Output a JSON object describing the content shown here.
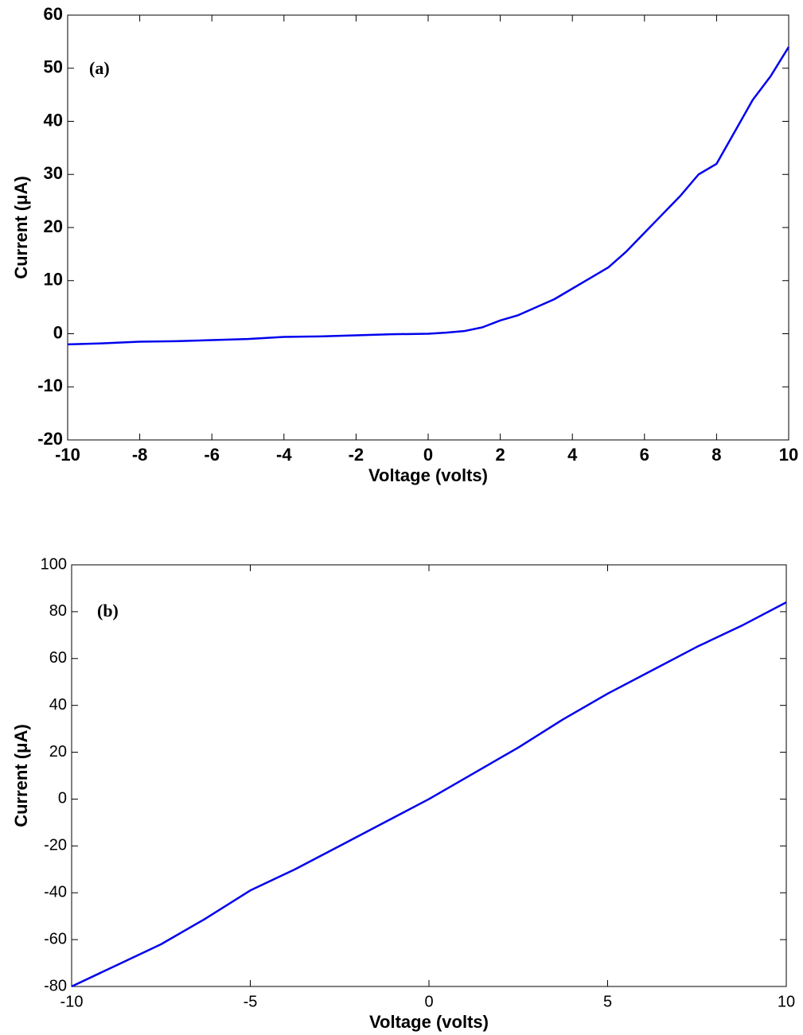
{
  "chart_data": [
    {
      "type": "line",
      "annotation": "(a)",
      "xlabel": "Voltage (volts)",
      "ylabel": "Current (μA)",
      "x": [
        -10,
        -9,
        -8,
        -7,
        -6,
        -5,
        -4,
        -3,
        -2,
        -1,
        0,
        0.5,
        1,
        1.5,
        2,
        2.5,
        3,
        3.5,
        4,
        4.5,
        5,
        5.5,
        6,
        6.5,
        7,
        7.5,
        8,
        8.5,
        9,
        9.5,
        10
      ],
      "series": [
        {
          "color": "#0000ee",
          "values": [
            -2,
            -1.8,
            -1.5,
            -1.4,
            -1.2,
            -1.0,
            -0.6,
            -0.5,
            -0.3,
            -0.1,
            0,
            0.2,
            0.5,
            1.2,
            2.5,
            3.5,
            5,
            6.5,
            8.5,
            10.5,
            12.5,
            15.5,
            19,
            22.5,
            26,
            30,
            32,
            38,
            44,
            48.5,
            54
          ]
        }
      ],
      "xlim": [
        -10,
        10
      ],
      "xticks": [
        -10,
        -8,
        -6,
        -4,
        -2,
        0,
        2,
        4,
        6,
        8,
        10
      ],
      "ylim": [
        -20,
        60
      ],
      "yticks": [
        -20,
        -10,
        0,
        10,
        20,
        30,
        40,
        50,
        60
      ]
    },
    {
      "type": "line",
      "annotation": "(b)",
      "xlabel": "Voltage (volts)",
      "ylabel": "Current (μA)",
      "x": [
        -10,
        -8.75,
        -7.5,
        -6.25,
        -5,
        -3.75,
        -2.5,
        -1.25,
        0,
        1.25,
        2.5,
        3.75,
        5,
        6.25,
        7.5,
        8.75,
        10
      ],
      "series": [
        {
          "color": "#0000ee",
          "values": [
            -80,
            -71,
            -62,
            -51,
            -39,
            -30,
            -20,
            -10,
            0,
            11,
            22,
            34,
            45,
            55,
            65,
            74,
            84
          ]
        }
      ],
      "xlim": [
        -10,
        10
      ],
      "xticks": [
        -10,
        -5,
        0,
        5,
        10
      ],
      "ylim": [
        -80,
        100
      ],
      "yticks": [
        -80,
        -60,
        -40,
        -20,
        0,
        20,
        40,
        60,
        80,
        100
      ]
    }
  ]
}
